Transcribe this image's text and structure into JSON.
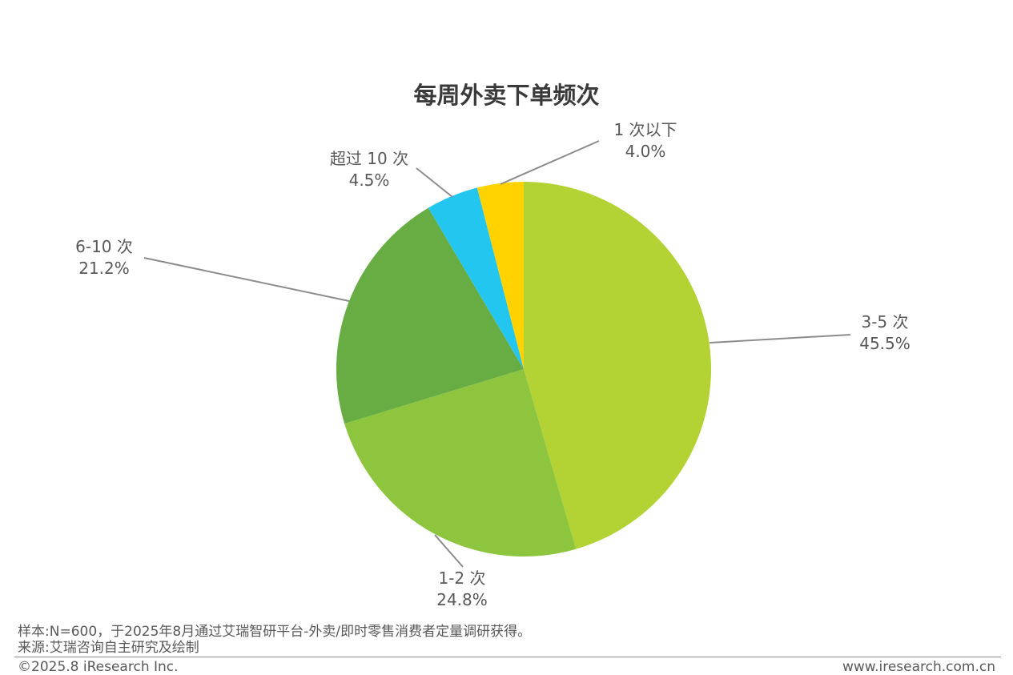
{
  "chart_data": {
    "type": "pie",
    "title": "每周外卖下单频次",
    "slices": [
      {
        "label": "3-5 次",
        "value": 45.5,
        "value_label": "45.5%",
        "color": "#b3d234"
      },
      {
        "label": "1-2 次",
        "value": 24.8,
        "value_label": "24.8%",
        "color": "#8dc53f"
      },
      {
        "label": "6-10 次",
        "value": 21.2,
        "value_label": "21.2%",
        "color": "#67ad44"
      },
      {
        "label": "超过 10 次",
        "value": 4.5,
        "value_label": "4.5%",
        "color": "#22c6ef"
      },
      {
        "label": "1 次以下",
        "value": 4.0,
        "value_label": "4.0%",
        "color": "#ffd200"
      }
    ]
  },
  "footer": {
    "note": "样本:N=600，于2025年8月通过艾瑞智研平台-外卖/即时零售消费者定量调研获得。",
    "source": "来源:艾瑞咨询自主研究及绘制",
    "copyright": "©2025.8 iResearch Inc.",
    "website": "www.iresearch.com.cn"
  }
}
